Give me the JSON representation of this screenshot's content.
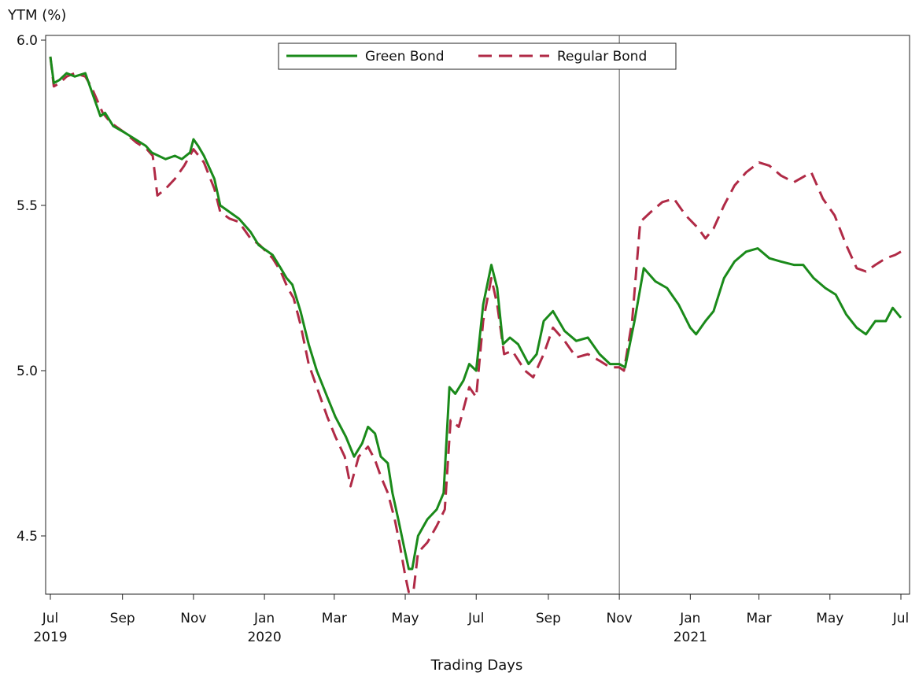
{
  "chart_data": {
    "type": "line",
    "ylabel": "YTM (%)",
    "xlabel": "Trading Days",
    "ylim": [
      4.32,
      6.02
    ],
    "xlim": [
      "2019-07-01",
      "2021-07-01"
    ],
    "yticks": [
      {
        "value": 4.5,
        "label": "4.5"
      },
      {
        "value": 5.0,
        "label": "5.0"
      },
      {
        "value": 5.5,
        "label": "5.5"
      },
      {
        "value": 6.0,
        "label": "6.0"
      }
    ],
    "xticks": [
      {
        "date": "2019-07-01",
        "label": "Jul",
        "year": "2019"
      },
      {
        "date": "2019-09-01",
        "label": "Sep",
        "year": ""
      },
      {
        "date": "2019-11-01",
        "label": "Nov",
        "year": ""
      },
      {
        "date": "2020-01-01",
        "label": "Jan",
        "year": "2020"
      },
      {
        "date": "2020-03-01",
        "label": "Mar",
        "year": ""
      },
      {
        "date": "2020-05-01",
        "label": "May",
        "year": ""
      },
      {
        "date": "2020-07-01",
        "label": "Jul",
        "year": ""
      },
      {
        "date": "2020-09-01",
        "label": "Sep",
        "year": ""
      },
      {
        "date": "2020-11-01",
        "label": "Nov",
        "year": ""
      },
      {
        "date": "2021-01-01",
        "label": "Jan",
        "year": "2021"
      },
      {
        "date": "2021-03-01",
        "label": "Mar",
        "year": ""
      },
      {
        "date": "2021-05-01",
        "label": "May",
        "year": ""
      },
      {
        "date": "2021-07-01",
        "label": "Jul",
        "year": ""
      }
    ],
    "reference_line": {
      "date": "2020-11-01"
    },
    "legend": {
      "placement": "top-center"
    },
    "series": [
      {
        "name": "Green Bond",
        "color": "#1a8a1a",
        "dash": "solid",
        "points": [
          [
            "2019-07-01",
            5.95
          ],
          [
            "2019-07-04",
            5.87
          ],
          [
            "2019-07-09",
            5.88
          ],
          [
            "2019-07-15",
            5.9
          ],
          [
            "2019-07-22",
            5.89
          ],
          [
            "2019-07-31",
            5.9
          ],
          [
            "2019-08-05",
            5.85
          ],
          [
            "2019-08-10",
            5.8
          ],
          [
            "2019-08-13",
            5.77
          ],
          [
            "2019-08-17",
            5.78
          ],
          [
            "2019-08-24",
            5.74
          ],
          [
            "2019-09-03",
            5.72
          ],
          [
            "2019-09-12",
            5.7
          ],
          [
            "2019-09-21",
            5.68
          ],
          [
            "2019-09-26",
            5.66
          ],
          [
            "2019-10-02",
            5.65
          ],
          [
            "2019-10-08",
            5.64
          ],
          [
            "2019-10-16",
            5.65
          ],
          [
            "2019-10-22",
            5.64
          ],
          [
            "2019-10-29",
            5.66
          ],
          [
            "2019-11-01",
            5.7
          ],
          [
            "2019-11-05",
            5.68
          ],
          [
            "2019-11-10",
            5.65
          ],
          [
            "2019-11-19",
            5.58
          ],
          [
            "2019-11-24",
            5.5
          ],
          [
            "2019-12-02",
            5.48
          ],
          [
            "2019-12-10",
            5.46
          ],
          [
            "2019-12-20",
            5.42
          ],
          [
            "2019-12-27",
            5.38
          ],
          [
            "2020-01-08",
            5.35
          ],
          [
            "2020-01-15",
            5.31
          ],
          [
            "2020-01-20",
            5.28
          ],
          [
            "2020-01-25",
            5.26
          ],
          [
            "2020-02-01",
            5.18
          ],
          [
            "2020-02-08",
            5.08
          ],
          [
            "2020-02-15",
            5.0
          ],
          [
            "2020-02-24",
            4.92
          ],
          [
            "2020-03-02",
            4.86
          ],
          [
            "2020-03-11",
            4.8
          ],
          [
            "2020-03-18",
            4.74
          ],
          [
            "2020-03-25",
            4.78
          ],
          [
            "2020-03-30",
            4.83
          ],
          [
            "2020-04-05",
            4.81
          ],
          [
            "2020-04-10",
            4.74
          ],
          [
            "2020-04-16",
            4.72
          ],
          [
            "2020-04-20",
            4.63
          ],
          [
            "2020-04-25",
            4.55
          ],
          [
            "2020-05-01",
            4.45
          ],
          [
            "2020-05-04",
            4.4
          ],
          [
            "2020-05-07",
            4.4
          ],
          [
            "2020-05-12",
            4.5
          ],
          [
            "2020-05-20",
            4.55
          ],
          [
            "2020-05-28",
            4.58
          ],
          [
            "2020-06-03",
            4.63
          ],
          [
            "2020-06-08",
            4.95
          ],
          [
            "2020-06-13",
            4.93
          ],
          [
            "2020-06-20",
            4.97
          ],
          [
            "2020-06-25",
            5.02
          ],
          [
            "2020-07-01",
            5.0
          ],
          [
            "2020-07-07",
            5.2
          ],
          [
            "2020-07-14",
            5.32
          ],
          [
            "2020-07-19",
            5.25
          ],
          [
            "2020-07-24",
            5.08
          ],
          [
            "2020-07-30",
            5.1
          ],
          [
            "2020-08-06",
            5.08
          ],
          [
            "2020-08-15",
            5.02
          ],
          [
            "2020-08-22",
            5.05
          ],
          [
            "2020-08-28",
            5.15
          ],
          [
            "2020-09-05",
            5.18
          ],
          [
            "2020-09-15",
            5.12
          ],
          [
            "2020-09-25",
            5.09
          ],
          [
            "2020-10-05",
            5.1
          ],
          [
            "2020-10-15",
            5.05
          ],
          [
            "2020-10-24",
            5.02
          ],
          [
            "2020-11-01",
            5.02
          ],
          [
            "2020-11-06",
            5.01
          ],
          [
            "2020-11-14",
            5.15
          ],
          [
            "2020-11-22",
            5.31
          ],
          [
            "2020-12-02",
            5.27
          ],
          [
            "2020-12-12",
            5.25
          ],
          [
            "2020-12-22",
            5.2
          ],
          [
            "2021-01-01",
            5.13
          ],
          [
            "2021-01-06",
            5.11
          ],
          [
            "2021-01-14",
            5.15
          ],
          [
            "2021-01-21",
            5.18
          ],
          [
            "2021-01-30",
            5.28
          ],
          [
            "2021-02-08",
            5.33
          ],
          [
            "2021-02-18",
            5.36
          ],
          [
            "2021-02-28",
            5.37
          ],
          [
            "2021-03-10",
            5.34
          ],
          [
            "2021-03-20",
            5.33
          ],
          [
            "2021-03-31",
            5.32
          ],
          [
            "2021-04-08",
            5.32
          ],
          [
            "2021-04-17",
            5.28
          ],
          [
            "2021-04-27",
            5.25
          ],
          [
            "2021-05-06",
            5.23
          ],
          [
            "2021-05-15",
            5.17
          ],
          [
            "2021-05-24",
            5.13
          ],
          [
            "2021-06-01",
            5.11
          ],
          [
            "2021-06-09",
            5.15
          ],
          [
            "2021-06-18",
            5.15
          ],
          [
            "2021-06-24",
            5.19
          ],
          [
            "2021-07-01",
            5.16
          ]
        ]
      },
      {
        "name": "Regular Bond",
        "color": "#b02a46",
        "dash": "dashed",
        "points": [
          [
            "2019-07-01",
            5.95
          ],
          [
            "2019-07-04",
            5.86
          ],
          [
            "2019-07-09",
            5.87
          ],
          [
            "2019-07-15",
            5.89
          ],
          [
            "2019-07-22",
            5.9
          ],
          [
            "2019-07-31",
            5.89
          ],
          [
            "2019-08-05",
            5.86
          ],
          [
            "2019-08-10",
            5.82
          ],
          [
            "2019-08-15",
            5.78
          ],
          [
            "2019-08-22",
            5.75
          ],
          [
            "2019-09-03",
            5.72
          ],
          [
            "2019-09-13",
            5.69
          ],
          [
            "2019-09-22",
            5.67
          ],
          [
            "2019-09-27",
            5.65
          ],
          [
            "2019-10-01",
            5.53
          ],
          [
            "2019-10-08",
            5.55
          ],
          [
            "2019-10-16",
            5.58
          ],
          [
            "2019-10-24",
            5.62
          ],
          [
            "2019-11-01",
            5.67
          ],
          [
            "2019-11-10",
            5.63
          ],
          [
            "2019-11-19",
            5.55
          ],
          [
            "2019-11-24",
            5.48
          ],
          [
            "2019-12-02",
            5.46
          ],
          [
            "2019-12-10",
            5.45
          ],
          [
            "2019-12-20",
            5.4
          ],
          [
            "2019-12-28",
            5.38
          ],
          [
            "2020-01-08",
            5.34
          ],
          [
            "2020-01-15",
            5.3
          ],
          [
            "2020-01-21",
            5.25
          ],
          [
            "2020-01-26",
            5.22
          ],
          [
            "2020-02-01",
            5.14
          ],
          [
            "2020-02-08",
            5.02
          ],
          [
            "2020-02-15",
            4.95
          ],
          [
            "2020-02-24",
            4.86
          ],
          [
            "2020-03-02",
            4.8
          ],
          [
            "2020-03-10",
            4.74
          ],
          [
            "2020-03-15",
            4.65
          ],
          [
            "2020-03-22",
            4.74
          ],
          [
            "2020-03-30",
            4.77
          ],
          [
            "2020-04-05",
            4.73
          ],
          [
            "2020-04-10",
            4.68
          ],
          [
            "2020-04-16",
            4.63
          ],
          [
            "2020-04-22",
            4.55
          ],
          [
            "2020-04-26",
            4.48
          ],
          [
            "2020-05-01",
            4.38
          ],
          [
            "2020-05-04",
            4.33
          ],
          [
            "2020-05-08",
            4.33
          ],
          [
            "2020-05-12",
            4.45
          ],
          [
            "2020-05-20",
            4.48
          ],
          [
            "2020-05-28",
            4.53
          ],
          [
            "2020-06-04",
            4.58
          ],
          [
            "2020-06-09",
            4.85
          ],
          [
            "2020-06-16",
            4.83
          ],
          [
            "2020-06-25",
            4.95
          ],
          [
            "2020-07-01",
            4.92
          ],
          [
            "2020-07-07",
            5.15
          ],
          [
            "2020-07-14",
            5.28
          ],
          [
            "2020-07-19",
            5.2
          ],
          [
            "2020-07-25",
            5.05
          ],
          [
            "2020-08-01",
            5.06
          ],
          [
            "2020-08-12",
            5.0
          ],
          [
            "2020-08-19",
            4.98
          ],
          [
            "2020-08-28",
            5.05
          ],
          [
            "2020-09-05",
            5.13
          ],
          [
            "2020-09-15",
            5.09
          ],
          [
            "2020-09-25",
            5.04
          ],
          [
            "2020-10-05",
            5.05
          ],
          [
            "2020-10-15",
            5.03
          ],
          [
            "2020-10-24",
            5.01
          ],
          [
            "2020-11-01",
            5.01
          ],
          [
            "2020-11-05",
            5.0
          ],
          [
            "2020-11-12",
            5.15
          ],
          [
            "2020-11-19",
            5.45
          ],
          [
            "2020-11-28",
            5.48
          ],
          [
            "2020-12-08",
            5.51
          ],
          [
            "2020-12-18",
            5.52
          ],
          [
            "2020-12-28",
            5.47
          ],
          [
            "2021-01-08",
            5.43
          ],
          [
            "2021-01-14",
            5.4
          ],
          [
            "2021-01-21",
            5.43
          ],
          [
            "2021-01-30",
            5.5
          ],
          [
            "2021-02-08",
            5.56
          ],
          [
            "2021-02-18",
            5.6
          ],
          [
            "2021-03-01",
            5.63
          ],
          [
            "2021-03-10",
            5.62
          ],
          [
            "2021-03-20",
            5.59
          ],
          [
            "2021-03-31",
            5.57
          ],
          [
            "2021-04-10",
            5.59
          ],
          [
            "2021-04-15",
            5.6
          ],
          [
            "2021-04-25",
            5.52
          ],
          [
            "2021-05-05",
            5.47
          ],
          [
            "2021-05-15",
            5.38
          ],
          [
            "2021-05-24",
            5.31
          ],
          [
            "2021-06-01",
            5.3
          ],
          [
            "2021-06-09",
            5.32
          ],
          [
            "2021-06-18",
            5.34
          ],
          [
            "2021-06-26",
            5.35
          ],
          [
            "2021-07-01",
            5.36
          ]
        ]
      }
    ]
  }
}
